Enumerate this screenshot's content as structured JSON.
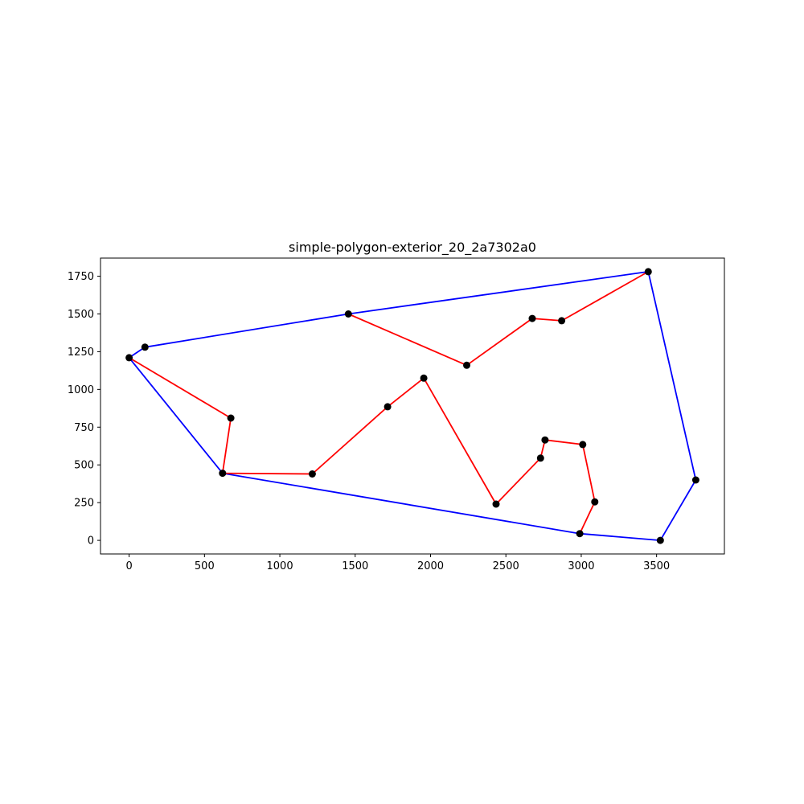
{
  "chart_data": {
    "type": "line",
    "title": "simple-polygon-exterior_20_2a7302a0",
    "xlabel": "",
    "ylabel": "",
    "xlim": [
      -190,
      3950
    ],
    "ylim": [
      -90,
      1870
    ],
    "xticks": [
      0,
      500,
      1000,
      1500,
      2000,
      2500,
      3000,
      3500
    ],
    "yticks": [
      0,
      250,
      500,
      750,
      1000,
      1250,
      1500,
      1750
    ],
    "xtick_labels": [
      "0",
      "500",
      "1000",
      "1500",
      "2000",
      "2500",
      "3000",
      "3500"
    ],
    "ytick_labels": [
      "0",
      "250",
      "500",
      "750",
      "1000",
      "1250",
      "1500",
      "1750"
    ],
    "grid": false,
    "points": [
      {
        "x": 0,
        "y": 1210
      },
      {
        "x": 105,
        "y": 1280
      },
      {
        "x": 1455,
        "y": 1500
      },
      {
        "x": 2240,
        "y": 1160
      },
      {
        "x": 2675,
        "y": 1470
      },
      {
        "x": 2870,
        "y": 1455
      },
      {
        "x": 3445,
        "y": 1780
      },
      {
        "x": 3760,
        "y": 400
      },
      {
        "x": 3525,
        "y": 0
      },
      {
        "x": 2990,
        "y": 45
      },
      {
        "x": 3090,
        "y": 255
      },
      {
        "x": 3010,
        "y": 635
      },
      {
        "x": 2760,
        "y": 665
      },
      {
        "x": 2730,
        "y": 545
      },
      {
        "x": 2435,
        "y": 240
      },
      {
        "x": 1955,
        "y": 1075
      },
      {
        "x": 1715,
        "y": 885
      },
      {
        "x": 1215,
        "y": 440
      },
      {
        "x": 620,
        "y": 445
      },
      {
        "x": 675,
        "y": 810
      }
    ],
    "series": [
      {
        "color": "#0000ff",
        "path": [
          [
            0,
            1210
          ],
          [
            105,
            1280
          ],
          [
            1455,
            1500
          ],
          [
            3445,
            1780
          ],
          [
            3760,
            400
          ],
          [
            3525,
            0
          ],
          [
            2990,
            45
          ],
          [
            620,
            445
          ],
          [
            0,
            1210
          ]
        ]
      },
      {
        "color": "#ff0000",
        "path": [
          [
            1455,
            1500
          ],
          [
            2240,
            1160
          ],
          [
            2675,
            1470
          ],
          [
            2870,
            1455
          ],
          [
            3445,
            1780
          ]
        ]
      },
      {
        "color": "#ff0000",
        "path": [
          [
            2990,
            45
          ],
          [
            3090,
            255
          ],
          [
            3010,
            635
          ],
          [
            2760,
            665
          ],
          [
            2730,
            545
          ],
          [
            2435,
            240
          ],
          [
            1955,
            1075
          ],
          [
            1715,
            885
          ],
          [
            1215,
            440
          ],
          [
            620,
            445
          ],
          [
            675,
            810
          ],
          [
            0,
            1210
          ]
        ]
      }
    ],
    "point_color": "#000000"
  }
}
